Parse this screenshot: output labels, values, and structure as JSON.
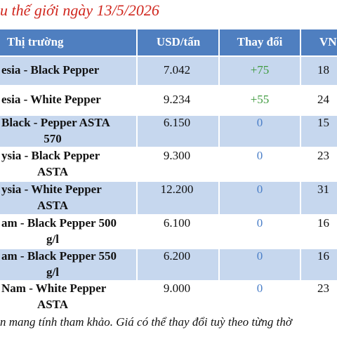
{
  "title": "u thế giới ngày 13/5/2026",
  "table": {
    "header": [
      "Thị trường",
      "USD/tấn",
      "Thay đổi",
      "VN"
    ],
    "rows": [
      {
        "market": [
          "esia - Black Pepper"
        ],
        "usd": "7.042",
        "change": "+75",
        "vnd": "18"
      },
      {
        "market": [
          "esia - White Pepper"
        ],
        "usd": "9.234",
        "change": "+55",
        "vnd": "24"
      },
      {
        "market": [
          "Black - Pepper ASTA",
          "570"
        ],
        "usd": "6.150",
        "change": "0",
        "vnd": "15"
      },
      {
        "market": [
          "ysia - Black Pepper",
          "ASTA"
        ],
        "usd": "9.300",
        "change": "0",
        "vnd": "23"
      },
      {
        "market": [
          "ysia - White Pepper",
          "ASTA"
        ],
        "usd": "12.200",
        "change": "0",
        "vnd": "31"
      },
      {
        "market": [
          "am - Black Pepper 500",
          "g/l"
        ],
        "usd": "6.100",
        "change": "0",
        "vnd": "16"
      },
      {
        "market": [
          "am - Black Pepper 550",
          "g/l"
        ],
        "usd": "6.200",
        "change": "0",
        "vnd": "16"
      },
      {
        "market": [
          "Nam - White Pepper",
          "ASTA"
        ],
        "usd": "9.000",
        "change": "0",
        "vnd": "23"
      }
    ]
  },
  "footer": "n mang tính tham khảo. Giá có thể thay đổi tuỳ theo từng thờ"
}
